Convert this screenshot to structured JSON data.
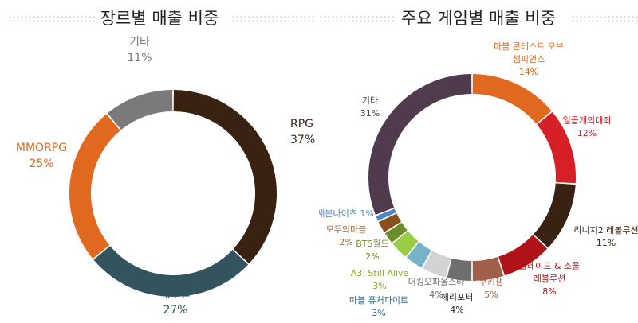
{
  "chart_data": [
    {
      "type": "pie",
      "title": "장르별 매출 비중",
      "series": [
        {
          "name": "RPG",
          "value": 37,
          "label": "37%",
          "color": "#3a2213"
        },
        {
          "name": "캐주얼",
          "value": 27,
          "label": "27%",
          "color": "#33535f"
        },
        {
          "name": "MMORPG",
          "value": 25,
          "label": "25%",
          "color": "#e0681f"
        },
        {
          "name": "기타",
          "value": 11,
          "label": "11%",
          "color": "#7a7a7a"
        }
      ]
    },
    {
      "type": "pie",
      "title": "주요 게임별 매출 비중",
      "series": [
        {
          "name": "마블 콘테스트 오브 챔피언스",
          "value": 14,
          "label": "14%",
          "color": "#e0681f"
        },
        {
          "name": "일곱개의대죄",
          "value": 12,
          "label": "12%",
          "color": "#d61f26"
        },
        {
          "name": "리니지2 레볼루션",
          "value": 11,
          "label": "11%",
          "color": "#3a2213"
        },
        {
          "name": "블레이드 & 소울 레볼루션",
          "value": 8,
          "label": "8%",
          "color": "#b11218"
        },
        {
          "name": "쿠키잼",
          "value": 5,
          "label": "5%",
          "color": "#a0604a"
        },
        {
          "name": "해리포터",
          "value": 4,
          "label": "4%",
          "color": "#6e6e6e"
        },
        {
          "name": "더킹오파올스타",
          "value": 4,
          "label": "4%",
          "color": "#d3d3d3"
        },
        {
          "name": "마블 퓨처파이트",
          "value": 3,
          "label": "3%",
          "color": "#75b4c8"
        },
        {
          "name": "A3: Still Alive",
          "value": 3,
          "label": "3%",
          "color": "#9acd45"
        },
        {
          "name": "BTS월드",
          "value": 2,
          "label": "2%",
          "color": "#6b8e2a"
        },
        {
          "name": "모두의마블",
          "value": 2,
          "label": "2%",
          "color": "#8a4f1c"
        },
        {
          "name": "세븐나이츠",
          "value": 1,
          "label": "1%",
          "color": "#4a86c8"
        },
        {
          "name": "기타",
          "value": 31,
          "label": "31%",
          "color": "#4f3a4e"
        }
      ]
    }
  ]
}
